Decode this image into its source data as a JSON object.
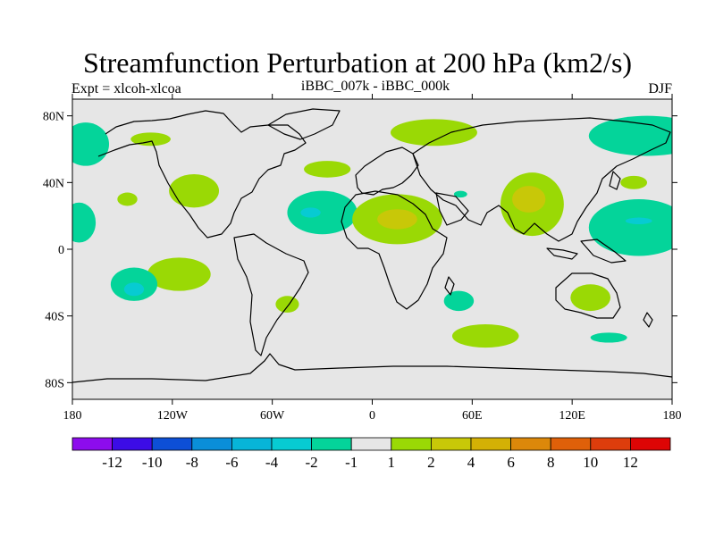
{
  "title": "Streamfunction Perturbation at 200 hPa (km2/s)",
  "left_label": "Expt = xlcoh-xlcoa",
  "center_label": "iBBC_007k - iBBC_000k",
  "right_label": "DJF",
  "map": {
    "projection": "cylindrical equidistant",
    "lon_range": [
      -180,
      180
    ],
    "lat_range": [
      -90,
      90
    ],
    "lat_tick_labels": [
      {
        "lat": 80,
        "label": "80N"
      },
      {
        "lat": 40,
        "label": "40N"
      },
      {
        "lat": 0,
        "label": "0"
      },
      {
        "lat": -40,
        "label": "40S"
      },
      {
        "lat": -80,
        "label": "80S"
      }
    ],
    "lon_tick_labels": [
      {
        "lon": -180,
        "label": "180"
      },
      {
        "lon": -120,
        "label": "120W"
      },
      {
        "lon": -60,
        "label": "60W"
      },
      {
        "lon": 0,
        "label": "0"
      },
      {
        "lon": 60,
        "label": "60E"
      },
      {
        "lon": 120,
        "label": "120E"
      },
      {
        "lon": 180,
        "label": "180"
      }
    ],
    "colors": {
      "background": "#e6e6e6",
      "neg_1_to_2": "#04d49a",
      "neg_2_to_4": "#07cbd2",
      "pos_1_to_2": "#9ad905",
      "pos_2_to_4": "#c8c808"
    },
    "anomaly_regions": [
      {
        "name": "n-pacific-west-neg",
        "sign": "neg",
        "lon": -172,
        "lat": 63,
        "rlon": 14,
        "rlat": 13
      },
      {
        "name": "alaska-pos",
        "sign": "pos",
        "lon": -133,
        "lat": 66,
        "rlon": 12,
        "rlat": 4
      },
      {
        "name": "nw-america-pos",
        "sign": "pos",
        "lon": -107,
        "lat": 35,
        "rlon": 15,
        "rlat": 10
      },
      {
        "name": "e-pacific-pos",
        "sign": "pos",
        "lon": -147,
        "lat": 30,
        "rlon": 6,
        "rlat": 4
      },
      {
        "name": "e-pacific-neg",
        "sign": "neg",
        "lon": -176,
        "lat": 16,
        "rlon": 10,
        "rlat": 12
      },
      {
        "name": "c-atlantic-neg",
        "sign": "neg",
        "lon": -30,
        "lat": 22,
        "rlon": 21,
        "rlat": 13
      },
      {
        "name": "nw-europe-pos",
        "sign": "pos",
        "lon": -27,
        "lat": 48,
        "rlon": 14,
        "rlat": 5
      },
      {
        "name": "n-russia-pos",
        "sign": "pos",
        "lon": 37,
        "lat": 70,
        "rlon": 26,
        "rlat": 8
      },
      {
        "name": "arctic-east-neg",
        "sign": "neg",
        "lon": 165,
        "lat": 68,
        "rlon": 35,
        "rlat": 12
      },
      {
        "name": "n-africa-pos",
        "sign": "pos",
        "lon": 15,
        "lat": 18,
        "rlon": 27,
        "rlat": 15
      },
      {
        "name": "arabia-neg",
        "sign": "neg",
        "lon": 53,
        "lat": 33,
        "rlon": 4,
        "rlat": 2
      },
      {
        "name": "south-asia-pos",
        "sign": "pos",
        "lon": 96,
        "lat": 27,
        "rlon": 19,
        "rlat": 19
      },
      {
        "name": "japan-pos",
        "sign": "pos",
        "lon": 157,
        "lat": 40,
        "rlon": 8,
        "rlat": 4
      },
      {
        "name": "w-pacific-neg",
        "sign": "neg",
        "lon": 160,
        "lat": 13,
        "rlon": 30,
        "rlat": 17
      },
      {
        "name": "s-pacific-pos",
        "sign": "pos",
        "lon": -116,
        "lat": -15,
        "rlon": 19,
        "rlat": 10
      },
      {
        "name": "s-pacific-neg",
        "sign": "neg",
        "lon": -143,
        "lat": -21,
        "rlon": 14,
        "rlat": 10
      },
      {
        "name": "s-atlantic-west-pos",
        "sign": "pos",
        "lon": -51,
        "lat": -33,
        "rlon": 7,
        "rlat": 5
      },
      {
        "name": "indian-ocean-neg",
        "sign": "neg",
        "lon": 52,
        "lat": -31,
        "rlon": 9,
        "rlat": 6
      },
      {
        "name": "s-ocean-pos",
        "sign": "pos",
        "lon": 68,
        "lat": -52,
        "rlon": 20,
        "rlat": 7
      },
      {
        "name": "australia-pos",
        "sign": "pos",
        "lon": 131,
        "lat": -29,
        "rlon": 12,
        "rlat": 8
      },
      {
        "name": "tasman-neg",
        "sign": "neg",
        "lon": 142,
        "lat": -53,
        "rlon": 11,
        "rlat": 3
      }
    ],
    "anomaly_cores": [
      {
        "name": "n-africa-core",
        "sign": "pos",
        "lon": 15,
        "lat": 18,
        "rlon": 12,
        "rlat": 6
      },
      {
        "name": "south-asia-core",
        "sign": "pos",
        "lon": 94,
        "lat": 30,
        "rlon": 10,
        "rlat": 8
      },
      {
        "name": "atlantic-core",
        "sign": "neg",
        "lon": -37,
        "lat": 22,
        "rlon": 6,
        "rlat": 3
      },
      {
        "name": "s-pacific-core",
        "sign": "neg",
        "lon": -143,
        "lat": -24,
        "rlon": 6,
        "rlat": 4
      },
      {
        "name": "w-pacific-core",
        "sign": "neg",
        "lon": 160,
        "lat": 17,
        "rlon": 8,
        "rlat": 2
      }
    ]
  },
  "colorbar": {
    "colors": [
      "#8d0ced",
      "#3c0ce6",
      "#0d4fd6",
      "#0a8ed9",
      "#07b5d8",
      "#07cbd2",
      "#04d49a",
      "#e6e6e6",
      "#9ad905",
      "#c8c808",
      "#d4b105",
      "#dc880a",
      "#df6009",
      "#dd3d0c",
      "#dd0505"
    ],
    "labels": [
      "-12",
      "-10",
      "-8",
      "-6",
      "-4",
      "-2",
      "-1",
      "1",
      "2",
      "4",
      "6",
      "8",
      "10",
      "12"
    ]
  }
}
